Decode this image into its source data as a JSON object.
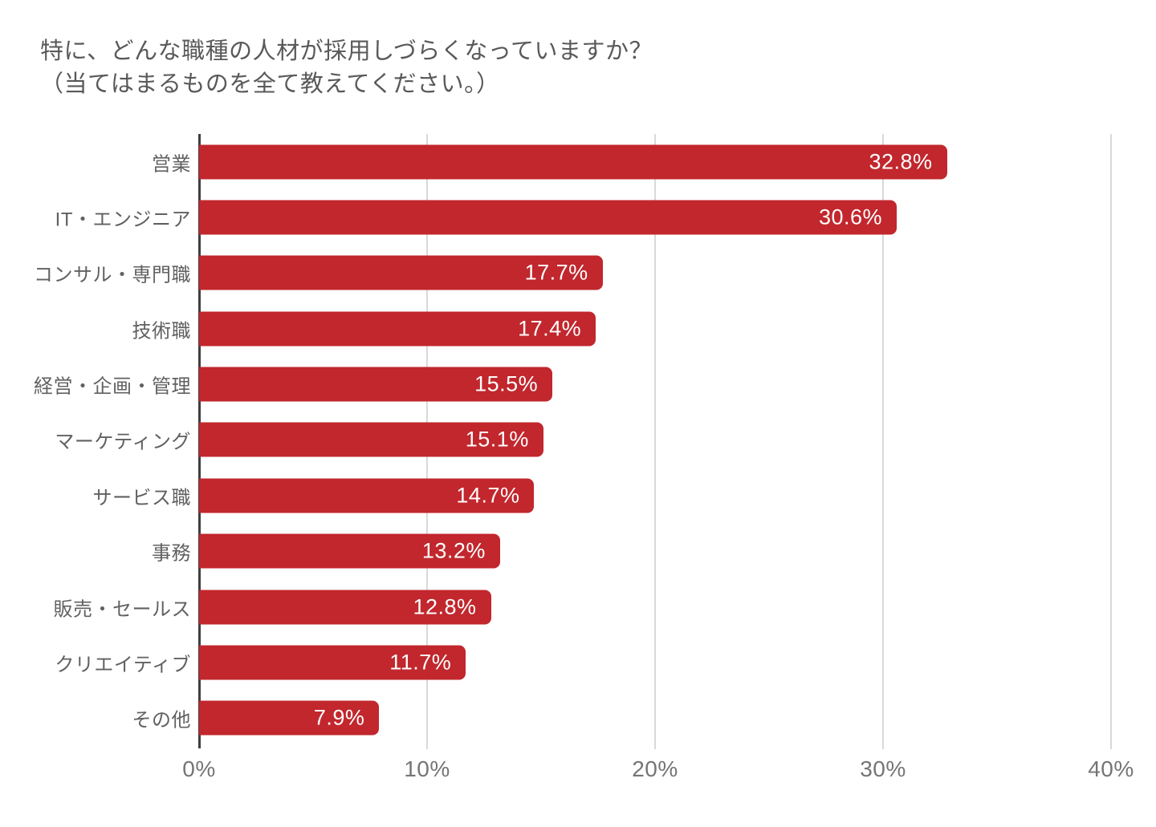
{
  "title": {
    "line1": "特に、どんな職種の人材が採用しづらくなっていますか？",
    "line2": "（当てはまるものを全て教えてください。）"
  },
  "chart_data": {
    "type": "bar",
    "orientation": "horizontal",
    "title": "特に、どんな職種の人材が採用しづらくなっていますか？（当てはまるものを全て教えてください。）",
    "categories": [
      "営業",
      "IT・エンジニア",
      "コンサル・専門職",
      "技術職",
      "経営・企画・管理",
      "マーケティング",
      "サービス職",
      "事務",
      "販売・セールス",
      "クリエイティブ",
      "その他"
    ],
    "values": [
      32.8,
      30.6,
      17.7,
      17.4,
      15.5,
      15.1,
      14.7,
      13.2,
      12.8,
      11.7,
      7.9
    ],
    "display_values": [
      "32.8%",
      "30.6%",
      "17.7%",
      "17.4%",
      "15.5%",
      "15.1%",
      "14.7%",
      "13.2%",
      "12.8%",
      "11.7%",
      "7.9%"
    ],
    "x_ticks": [
      "0%",
      "10%",
      "20%",
      "30%",
      "40%"
    ],
    "xlim": [
      0,
      40
    ],
    "xlabel": "",
    "ylabel": "",
    "grid": true,
    "legend": "none",
    "bar_color": "#C1272D",
    "value_label_color": "#FFFFFF",
    "grid_color": "#D9D9D9",
    "axis_line_color": "#3F3F3F",
    "category_label_color": "#616161",
    "tick_label_color": "#757575",
    "title_color": "#595959",
    "background_color": "#FFFFFF"
  }
}
